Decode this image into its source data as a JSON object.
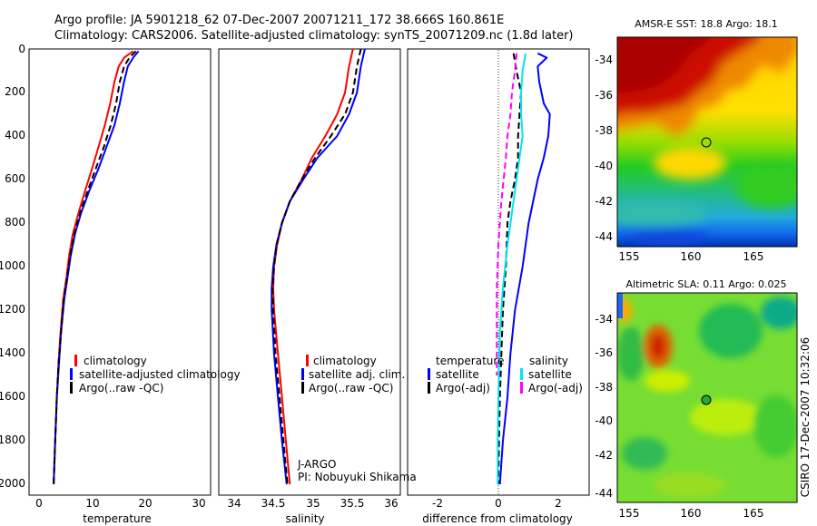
{
  "header": {
    "line1": "Argo profile: JA 5901218_62 07-Dec-2007 20071211_172 38.666S 160.861E",
    "line2": "Climatology: CARS2006. Satellite-adjusted climatology: synTS_20071209.nc (1.8d later)"
  },
  "side_stamp": "CSIRO 17-Dec-2007 10:32:06",
  "colors": {
    "climatology": "#ff0000",
    "satellite": "#0000ff",
    "argo": "#000000",
    "satellite_salinity": "#00e5ee",
    "argo_adj_salinity": "#ff00ff",
    "marker_sst": "#ffcc00",
    "marker_sla": "#22aa33"
  },
  "chart_data": [
    {
      "type": "line",
      "xlabel": "temperature",
      "x_ticks": [
        "0",
        "10",
        "20",
        "30"
      ],
      "y_ticks": [
        "0",
        "200",
        "400",
        "600",
        "800",
        "1000",
        "1200",
        "1400",
        "1600",
        "1800",
        "2000"
      ],
      "xlim": [
        -2,
        32
      ],
      "ylim": [
        2050,
        0
      ],
      "y_inverted": true,
      "legend": [
        "climatology",
        "satellite-adjusted climatology",
        "Argo(..raw -QC)"
      ],
      "series": [
        {
          "name": "climatology",
          "color": "#ff0000",
          "style": "solid",
          "points": [
            [
              17.5,
              10
            ],
            [
              15.8,
              40
            ],
            [
              14.8,
              80
            ],
            [
              14.0,
              150
            ],
            [
              13.2,
              250
            ],
            [
              12.2,
              350
            ],
            [
              11.0,
              450
            ],
            [
              9.8,
              550
            ],
            [
              8.5,
              650
            ],
            [
              7.3,
              750
            ],
            [
              6.2,
              850
            ],
            [
              5.5,
              950
            ],
            [
              5.0,
              1050
            ],
            [
              4.4,
              1150
            ],
            [
              3.9,
              1300
            ],
            [
              3.5,
              1450
            ],
            [
              3.2,
              1600
            ],
            [
              2.9,
              1800
            ],
            [
              2.6,
              2000
            ]
          ]
        },
        {
          "name": "satellite-adjusted climatology",
          "color": "#0000ff",
          "style": "solid",
          "points": [
            [
              18.5,
              10
            ],
            [
              17.5,
              40
            ],
            [
              16.5,
              80
            ],
            [
              15.8,
              150
            ],
            [
              15.0,
              250
            ],
            [
              14.0,
              350
            ],
            [
              12.5,
              450
            ],
            [
              11.0,
              550
            ],
            [
              9.3,
              650
            ],
            [
              7.8,
              750
            ],
            [
              6.6,
              850
            ],
            [
              5.8,
              950
            ],
            [
              5.2,
              1050
            ],
            [
              4.6,
              1150
            ],
            [
              4.0,
              1300
            ],
            [
              3.6,
              1450
            ],
            [
              3.2,
              1600
            ],
            [
              2.9,
              1800
            ],
            [
              2.6,
              2000
            ]
          ]
        },
        {
          "name": "Argo(..raw -QC)",
          "color": "#000000",
          "style": "dashed",
          "points": [
            [
              18.0,
              10
            ],
            [
              16.8,
              40
            ],
            [
              15.8,
              80
            ],
            [
              15.0,
              150
            ],
            [
              14.3,
              250
            ],
            [
              13.3,
              350
            ],
            [
              12.0,
              450
            ],
            [
              10.5,
              550
            ],
            [
              9.0,
              650
            ],
            [
              7.6,
              750
            ],
            [
              6.5,
              850
            ],
            [
              5.7,
              950
            ],
            [
              5.1,
              1050
            ],
            [
              4.5,
              1150
            ],
            [
              4.0,
              1300
            ],
            [
              3.5,
              1450
            ],
            [
              3.2,
              1600
            ],
            [
              2.9,
              1800
            ],
            [
              2.6,
              2000
            ]
          ]
        }
      ]
    },
    {
      "type": "line",
      "xlabel": "salinity",
      "x_ticks": [
        "34",
        "34.5",
        "35",
        "35.5",
        "36"
      ],
      "xlim": [
        33.8,
        36.1
      ],
      "ylim": [
        2050,
        0
      ],
      "y_inverted": true,
      "legend": [
        "climatology",
        "satellite adj. clim.",
        "Argo(..raw -QC)"
      ],
      "annotation": [
        "J-ARGO",
        "PI: Nobuyuki Shikama"
      ],
      "series": [
        {
          "name": "climatology",
          "color": "#ff0000",
          "style": "solid",
          "points": [
            [
              35.5,
              0
            ],
            [
              35.45,
              80
            ],
            [
              35.4,
              200
            ],
            [
              35.3,
              300
            ],
            [
              35.15,
              400
            ],
            [
              34.98,
              500
            ],
            [
              34.85,
              600
            ],
            [
              34.7,
              700
            ],
            [
              34.6,
              800
            ],
            [
              34.54,
              900
            ],
            [
              34.5,
              1000
            ],
            [
              34.49,
              1100
            ],
            [
              34.5,
              1200
            ],
            [
              34.55,
              1400
            ],
            [
              34.6,
              1600
            ],
            [
              34.65,
              1800
            ],
            [
              34.7,
              2000
            ]
          ]
        },
        {
          "name": "satellite adj. clim.",
          "color": "#0000ff",
          "style": "solid",
          "points": [
            [
              35.65,
              0
            ],
            [
              35.6,
              80
            ],
            [
              35.55,
              200
            ],
            [
              35.45,
              300
            ],
            [
              35.3,
              400
            ],
            [
              35.05,
              500
            ],
            [
              34.87,
              600
            ],
            [
              34.7,
              700
            ],
            [
              34.6,
              800
            ],
            [
              34.53,
              900
            ],
            [
              34.49,
              1000
            ],
            [
              34.47,
              1100
            ],
            [
              34.47,
              1200
            ],
            [
              34.5,
              1400
            ],
            [
              34.55,
              1600
            ],
            [
              34.6,
              1800
            ],
            [
              34.66,
              2000
            ]
          ]
        },
        {
          "name": "Argo(..raw -QC)",
          "color": "#000000",
          "style": "dashed",
          "points": [
            [
              35.6,
              0
            ],
            [
              35.55,
              80
            ],
            [
              35.5,
              200
            ],
            [
              35.4,
              300
            ],
            [
              35.22,
              400
            ],
            [
              35.02,
              500
            ],
            [
              34.85,
              600
            ],
            [
              34.7,
              700
            ],
            [
              34.6,
              800
            ],
            [
              34.53,
              900
            ],
            [
              34.5,
              1000
            ],
            [
              34.48,
              1100
            ],
            [
              34.49,
              1200
            ],
            [
              34.52,
              1400
            ],
            [
              34.57,
              1600
            ],
            [
              34.62,
              1800
            ],
            [
              34.67,
              2000
            ]
          ]
        }
      ]
    },
    {
      "type": "line",
      "xlabel": "difference from climatology",
      "x_ticks": [
        "-2",
        "0",
        "2"
      ],
      "xlim": [
        -3,
        3
      ],
      "ylim": [
        2050,
        0
      ],
      "y_inverted": true,
      "legend_left_title": "temperature",
      "legend_right_title": "salinity",
      "legend": [
        "satellite",
        "Argo(-adj)",
        "satellite",
        "Argo(-adj)"
      ],
      "zero_line": true,
      "series": [
        {
          "name": "satellite",
          "group": "temperature",
          "color": "#0000ff",
          "style": "solid",
          "points": [
            [
              1.3,
              20
            ],
            [
              1.6,
              40
            ],
            [
              1.3,
              80
            ],
            [
              1.35,
              150
            ],
            [
              1.5,
              250
            ],
            [
              1.7,
              300
            ],
            [
              1.65,
              400
            ],
            [
              1.5,
              500
            ],
            [
              1.3,
              600
            ],
            [
              1.0,
              800
            ],
            [
              0.8,
              1000
            ],
            [
              0.55,
              1200
            ],
            [
              0.4,
              1400
            ],
            [
              0.3,
              1600
            ],
            [
              0.15,
              1800
            ],
            [
              0.05,
              2000
            ]
          ]
        },
        {
          "name": "Argo(-adj)",
          "group": "temperature",
          "color": "#000000",
          "style": "dashed",
          "points": [
            [
              0.5,
              20
            ],
            [
              0.6,
              100
            ],
            [
              0.75,
              200
            ],
            [
              0.7,
              300
            ],
            [
              0.65,
              400
            ],
            [
              0.65,
              500
            ],
            [
              0.55,
              600
            ],
            [
              0.4,
              700
            ],
            [
              0.3,
              800
            ],
            [
              0.25,
              1000
            ],
            [
              0.15,
              1200
            ],
            [
              0.1,
              1400
            ],
            [
              0.05,
              1600
            ],
            [
              0.02,
              1800
            ],
            [
              0.0,
              2000
            ]
          ]
        },
        {
          "name": "satellite",
          "group": "salinity",
          "color": "#00e5ee",
          "style": "solid",
          "points": [
            [
              0.9,
              20
            ],
            [
              0.8,
              100
            ],
            [
              0.75,
              200
            ],
            [
              0.75,
              300
            ],
            [
              0.8,
              400
            ],
            [
              0.7,
              500
            ],
            [
              0.5,
              700
            ],
            [
              0.3,
              900
            ],
            [
              0.15,
              1100
            ],
            [
              0.05,
              1300
            ],
            [
              0.0,
              1600
            ],
            [
              -0.02,
              1800
            ],
            [
              -0.02,
              2000
            ]
          ]
        },
        {
          "name": "Argo(-adj)",
          "group": "salinity",
          "color": "#ff00ff",
          "style": "dashed",
          "points": [
            [
              0.6,
              20
            ],
            [
              0.55,
              100
            ],
            [
              0.45,
              200
            ],
            [
              0.4,
              300
            ],
            [
              0.3,
              400
            ],
            [
              0.25,
              500
            ],
            [
              0.1,
              700
            ],
            [
              0.0,
              900
            ],
            [
              -0.05,
              1100
            ],
            [
              -0.05,
              1300
            ],
            [
              -0.05,
              1500
            ]
          ]
        }
      ]
    },
    {
      "type": "heatmap",
      "title": "AMSR-E SST: 18.8 Argo: 18.1",
      "x_ticks": [
        "155",
        "160",
        "165"
      ],
      "y_ticks": [
        "-34",
        "-36",
        "-38",
        "-40",
        "-42",
        "-44"
      ],
      "xlim": [
        154.4,
        167.4
      ],
      "ylim": [
        -44.5,
        -33.2
      ],
      "marker": {
        "lon": 160.86,
        "lat": -38.67
      }
    },
    {
      "type": "heatmap",
      "title": "Altimetric SLA: 0.11 Argo: 0.025",
      "x_ticks": [
        "155",
        "160",
        "165"
      ],
      "y_ticks": [
        "-34",
        "-36",
        "-38",
        "-40",
        "-42",
        "-44"
      ],
      "xlim": [
        154.4,
        167.4
      ],
      "ylim": [
        -44.5,
        -33.2
      ],
      "marker": {
        "lon": 160.86,
        "lat": -38.67
      }
    }
  ]
}
